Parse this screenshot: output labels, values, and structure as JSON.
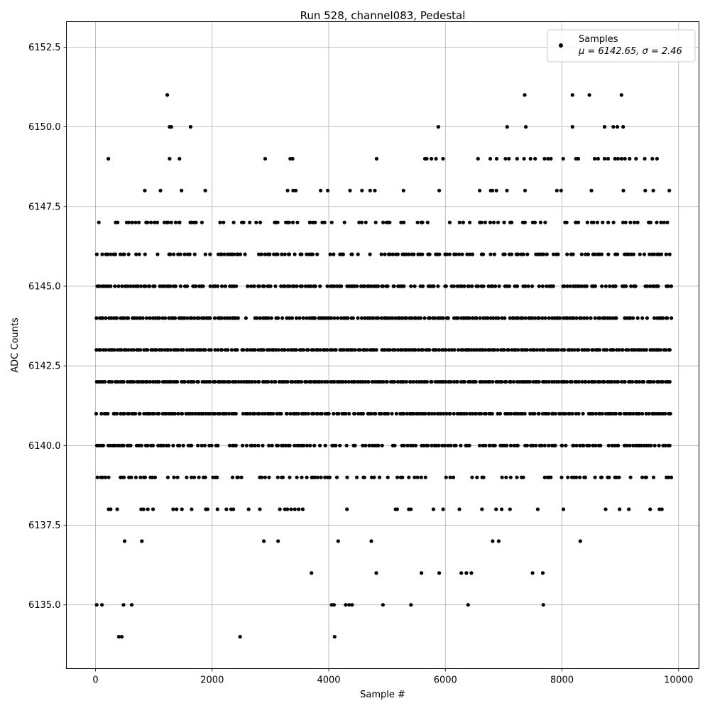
{
  "chart_data": {
    "type": "scatter",
    "title": "Run 528, channel083, Pedestal",
    "xlabel": "Sample #",
    "ylabel": "ADC Counts",
    "xlim": [
      -500,
      10350
    ],
    "ylim": [
      6133.0,
      6153.3
    ],
    "xticks": [
      0,
      2000,
      4000,
      6000,
      8000,
      10000
    ],
    "xtick_labels": [
      "0",
      "2000",
      "4000",
      "6000",
      "8000",
      "10000"
    ],
    "yticks": [
      6135.0,
      6137.5,
      6140.0,
      6142.5,
      6145.0,
      6147.5,
      6150.0,
      6152.5
    ],
    "ytick_labels": [
      "6135.0",
      "6137.5",
      "6140.0",
      "6142.5",
      "6145.0",
      "6147.5",
      "6150.0",
      "6152.5"
    ],
    "grid": true,
    "legend": {
      "placement": "top-right",
      "entries": [
        {
          "label": "Samples",
          "stats": "μ = 6142.65, σ = 2.46"
        }
      ]
    },
    "marker_color": "#000000",
    "n_samples": 9850,
    "level_distribution": {
      "values": [
        6134,
        6135,
        6136,
        6137,
        6138,
        6139,
        6140,
        6141,
        6142,
        6143,
        6144,
        6145,
        6146,
        6147,
        6148,
        6149,
        6150,
        6151
      ],
      "relative_density": [
        0.003,
        0.01,
        0.05,
        0.06,
        0.25,
        0.5,
        0.7,
        0.93,
        1.0,
        0.98,
        0.88,
        0.72,
        0.55,
        0.4,
        0.12,
        0.06,
        0.013,
        0.008
      ]
    },
    "sparse_points": [
      {
        "x": 400,
        "y": 6134
      },
      {
        "x": 450,
        "y": 6134
      },
      {
        "x": 2480,
        "y": 6134
      },
      {
        "x": 4100,
        "y": 6134
      },
      {
        "x": 20,
        "y": 6135
      },
      {
        "x": 110,
        "y": 6135
      },
      {
        "x": 480,
        "y": 6135
      },
      {
        "x": 620,
        "y": 6135
      },
      {
        "x": 4050,
        "y": 6135
      },
      {
        "x": 4090,
        "y": 6135
      },
      {
        "x": 4290,
        "y": 6135
      },
      {
        "x": 4350,
        "y": 6135
      },
      {
        "x": 4400,
        "y": 6135
      },
      {
        "x": 4930,
        "y": 6135
      },
      {
        "x": 5410,
        "y": 6135
      },
      {
        "x": 6390,
        "y": 6135
      },
      {
        "x": 7680,
        "y": 6135
      },
      {
        "x": 1230,
        "y": 6151
      },
      {
        "x": 7360,
        "y": 6151
      },
      {
        "x": 8180,
        "y": 6151
      },
      {
        "x": 8470,
        "y": 6151
      },
      {
        "x": 9020,
        "y": 6151
      },
      {
        "x": 1270,
        "y": 6150
      },
      {
        "x": 1300,
        "y": 6150
      },
      {
        "x": 1630,
        "y": 6150
      },
      {
        "x": 5880,
        "y": 6150
      },
      {
        "x": 7060,
        "y": 6150
      },
      {
        "x": 7380,
        "y": 6150
      },
      {
        "x": 8180,
        "y": 6150
      },
      {
        "x": 8730,
        "y": 6150
      },
      {
        "x": 8880,
        "y": 6150
      },
      {
        "x": 8950,
        "y": 6150
      },
      {
        "x": 9050,
        "y": 6150
      },
      {
        "x": 220,
        "y": 6149
      },
      {
        "x": 1270,
        "y": 6149
      },
      {
        "x": 1440,
        "y": 6149
      },
      {
        "x": 2910,
        "y": 6149
      },
      {
        "x": 3340,
        "y": 6149
      },
      {
        "x": 3380,
        "y": 6149
      },
      {
        "x": 4820,
        "y": 6149
      },
      {
        "x": 5650,
        "y": 6149
      },
      {
        "x": 5680,
        "y": 6149
      },
      {
        "x": 5760,
        "y": 6149
      },
      {
        "x": 5840,
        "y": 6149
      },
      {
        "x": 5960,
        "y": 6149
      },
      {
        "x": 6560,
        "y": 6149
      },
      {
        "x": 6770,
        "y": 6149
      },
      {
        "x": 6880,
        "y": 6149
      },
      {
        "x": 7030,
        "y": 6149
      },
      {
        "x": 7090,
        "y": 6149
      },
      {
        "x": 7230,
        "y": 6149
      },
      {
        "x": 7350,
        "y": 6149
      },
      {
        "x": 7460,
        "y": 6149
      },
      {
        "x": 7540,
        "y": 6149
      },
      {
        "x": 7700,
        "y": 6149
      },
      {
        "x": 7760,
        "y": 6149
      },
      {
        "x": 7810,
        "y": 6149
      },
      {
        "x": 8020,
        "y": 6149
      },
      {
        "x": 8240,
        "y": 6149
      },
      {
        "x": 8280,
        "y": 6149
      },
      {
        "x": 8560,
        "y": 6149
      },
      {
        "x": 8620,
        "y": 6149
      },
      {
        "x": 8730,
        "y": 6149
      },
      {
        "x": 8790,
        "y": 6149
      },
      {
        "x": 8910,
        "y": 6149
      },
      {
        "x": 8960,
        "y": 6149
      },
      {
        "x": 9020,
        "y": 6149
      },
      {
        "x": 9080,
        "y": 6149
      },
      {
        "x": 9160,
        "y": 6149
      },
      {
        "x": 9270,
        "y": 6149
      },
      {
        "x": 9420,
        "y": 6149
      },
      {
        "x": 9550,
        "y": 6149
      },
      {
        "x": 9630,
        "y": 6149
      }
    ],
    "gaps": [
      {
        "y": 6137,
        "x": [
          [
            1100,
            2100
          ],
          [
            3800,
            3950
          ],
          [
            5700,
            6100
          ]
        ]
      },
      {
        "y": 6138,
        "x": [
          [
            1150,
            1300
          ],
          [
            3000,
            3100
          ],
          [
            4400,
            4900
          ],
          [
            6000,
            6200
          ]
        ]
      },
      {
        "y": 6136,
        "x": [
          [
            1000,
            2450
          ],
          [
            2600,
            3050
          ],
          [
            3150,
            3650
          ]
        ]
      }
    ]
  }
}
